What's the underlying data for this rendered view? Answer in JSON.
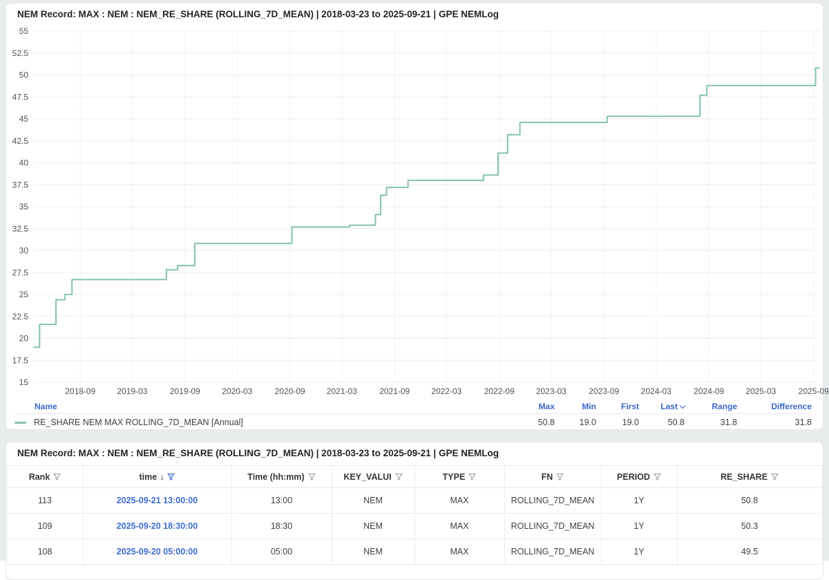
{
  "chart_panel": {
    "title": "NEM Record: MAX : NEM : NEM_RE_SHARE (ROLLING_7D_MEAN) | 2018-03-23 to 2025-09-21 | GPE NEMLog"
  },
  "table_panel": {
    "title": "NEM Record: MAX : NEM : NEM_RE_SHARE (ROLLING_7D_MEAN) | 2018-03-23 to 2025-09-21 | GPE NEMLog"
  },
  "chart_data": {
    "type": "line",
    "line_style": "step-after",
    "title": "NEM Record: MAX : NEM : NEM_RE_SHARE (ROLLING_7D_MEAN) | 2018-03-23 to 2025-09-21 | GPE NEMLog",
    "x_range": [
      "2018-03-23",
      "2025-09-21"
    ],
    "ylim": [
      15,
      55
    ],
    "y_ticks": [
      15,
      17.5,
      20,
      22.5,
      25,
      27.5,
      30,
      32.5,
      35,
      37.5,
      40,
      42.5,
      45,
      47.5,
      50,
      52.5,
      55
    ],
    "x_ticks": [
      "2018-09",
      "2019-03",
      "2019-09",
      "2020-03",
      "2020-09",
      "2021-03",
      "2021-09",
      "2022-03",
      "2022-09",
      "2023-03",
      "2023-09",
      "2024-03",
      "2024-09",
      "2025-03",
      "2025-09"
    ],
    "grid": true,
    "legend_position": "bottom",
    "series": [
      {
        "name": "RE_SHARE NEM MAX ROLLING_7D_MEAN [Annual]",
        "color": "#85c1a8",
        "points": [
          {
            "date": "2018-03-23",
            "value": 19.0
          },
          {
            "date": "2018-04-12",
            "value": 21.6
          },
          {
            "date": "2018-06-08",
            "value": 24.4
          },
          {
            "date": "2018-07-10",
            "value": 25.0
          },
          {
            "date": "2018-08-03",
            "value": 26.7
          },
          {
            "date": "2019-06-28",
            "value": 27.8
          },
          {
            "date": "2019-08-06",
            "value": 28.3
          },
          {
            "date": "2019-10-05",
            "value": 30.8
          },
          {
            "date": "2020-09-08",
            "value": 32.7
          },
          {
            "date": "2021-03-28",
            "value": 32.9
          },
          {
            "date": "2021-06-26",
            "value": 34.1
          },
          {
            "date": "2021-07-14",
            "value": 36.3
          },
          {
            "date": "2021-08-04",
            "value": 37.2
          },
          {
            "date": "2021-10-18",
            "value": 38.0
          },
          {
            "date": "2022-07-08",
            "value": 38.6
          },
          {
            "date": "2022-08-28",
            "value": 41.1
          },
          {
            "date": "2022-09-30",
            "value": 43.2
          },
          {
            "date": "2022-11-12",
            "value": 44.6
          },
          {
            "date": "2023-09-12",
            "value": 45.3
          },
          {
            "date": "2024-08-01",
            "value": 47.7
          },
          {
            "date": "2024-08-25",
            "value": 48.8
          },
          {
            "date": "2025-09-08",
            "value": 50.8
          }
        ]
      }
    ],
    "stats": {
      "max": 50.8,
      "min": 19.0,
      "first": 19.0,
      "last": 50.8,
      "range": 31.8,
      "difference": 31.8
    }
  },
  "legend": {
    "name_header": "Name",
    "stat_headers": [
      {
        "label": "Max"
      },
      {
        "label": "Min"
      },
      {
        "label": "First"
      },
      {
        "label": "Last",
        "sorted": true
      },
      {
        "label": "Range"
      },
      {
        "label": "Difference"
      }
    ],
    "series_label": "RE_SHARE NEM MAX ROLLING_7D_MEAN [Annual]",
    "stat_values": [
      "50.8",
      "19.0",
      "19.0",
      "50.8",
      "31.8",
      "31.8"
    ]
  },
  "table": {
    "columns": [
      {
        "label": "Rank",
        "filter": true
      },
      {
        "label": "time",
        "filter": true,
        "sorted": "desc",
        "filter_active": true
      },
      {
        "label": "Time (hh:mm)",
        "filter": true
      },
      {
        "label": "KEY_VALUI",
        "filter": true
      },
      {
        "label": "TYPE",
        "filter": true
      },
      {
        "label": "FN",
        "filter": true
      },
      {
        "label": "PERIOD",
        "filter": true
      },
      {
        "label": "RE_SHARE",
        "filter": true
      }
    ],
    "rows": [
      [
        "113",
        "2025-09-21 13:00:00",
        "13:00",
        "NEM",
        "MAX",
        "ROLLING_7D_MEAN",
        "1Y",
        "50.8"
      ],
      [
        "109",
        "2025-09-20 18:30:00",
        "18:30",
        "NEM",
        "MAX",
        "ROLLING_7D_MEAN",
        "1Y",
        "50.3"
      ],
      [
        "108",
        "2025-09-20 05:00:00",
        "05:00",
        "NEM",
        "MAX",
        "ROLLING_7D_MEAN",
        "1Y",
        "49.5"
      ]
    ]
  },
  "colors": {
    "line_green": "#85c1a8",
    "accent_blue": "#3b67c9",
    "link_blue": "#3d6bd2",
    "grid_h": "#ededed",
    "grid_v": "#f3f3f4",
    "axis_text": "#4d5156",
    "title_text": "#1f2327",
    "border": "#e9ebee",
    "page_bg": "#e9eced",
    "card_bg": "#ffffff",
    "funnel_gray": "#9aa0a6"
  }
}
